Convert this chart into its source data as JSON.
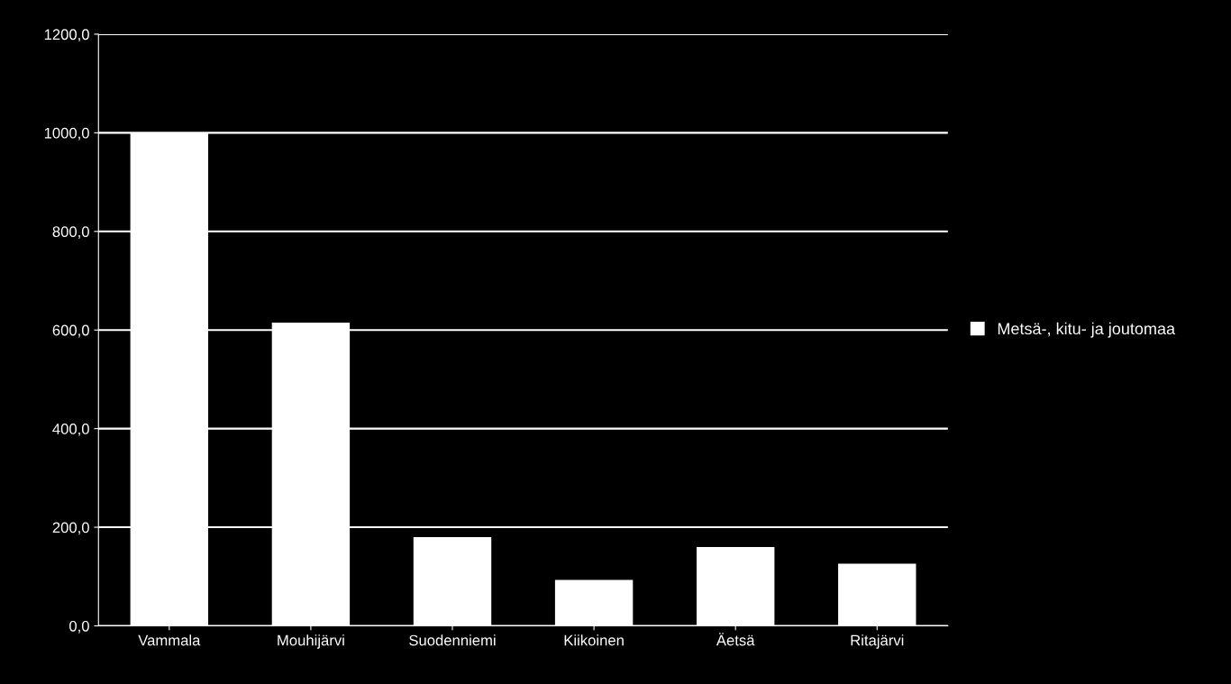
{
  "chart_data": {
    "type": "bar",
    "categories": [
      "Vammala",
      "Mouhijärvi",
      "Suodenniemi",
      "Kiikoinen",
      "Äetsä",
      "Ritajärvi"
    ],
    "series": [
      {
        "name": "Metsä-, kitu- ja joutomaa",
        "color": "#ffffff",
        "values": [
          1000,
          615,
          180,
          93,
          160,
          126
        ]
      }
    ],
    "ylim": [
      0,
      1200
    ],
    "yticks": [
      {
        "value": 0,
        "label": "0,0"
      },
      {
        "value": 200,
        "label": "200,0"
      },
      {
        "value": 400,
        "label": "400,0"
      },
      {
        "value": 600,
        "label": "600,0"
      },
      {
        "value": 800,
        "label": "800,0"
      },
      {
        "value": 1000,
        "label": "1000,0"
      },
      {
        "value": 1200,
        "label": "1200,0"
      }
    ],
    "grid": "y",
    "legend": "right"
  }
}
